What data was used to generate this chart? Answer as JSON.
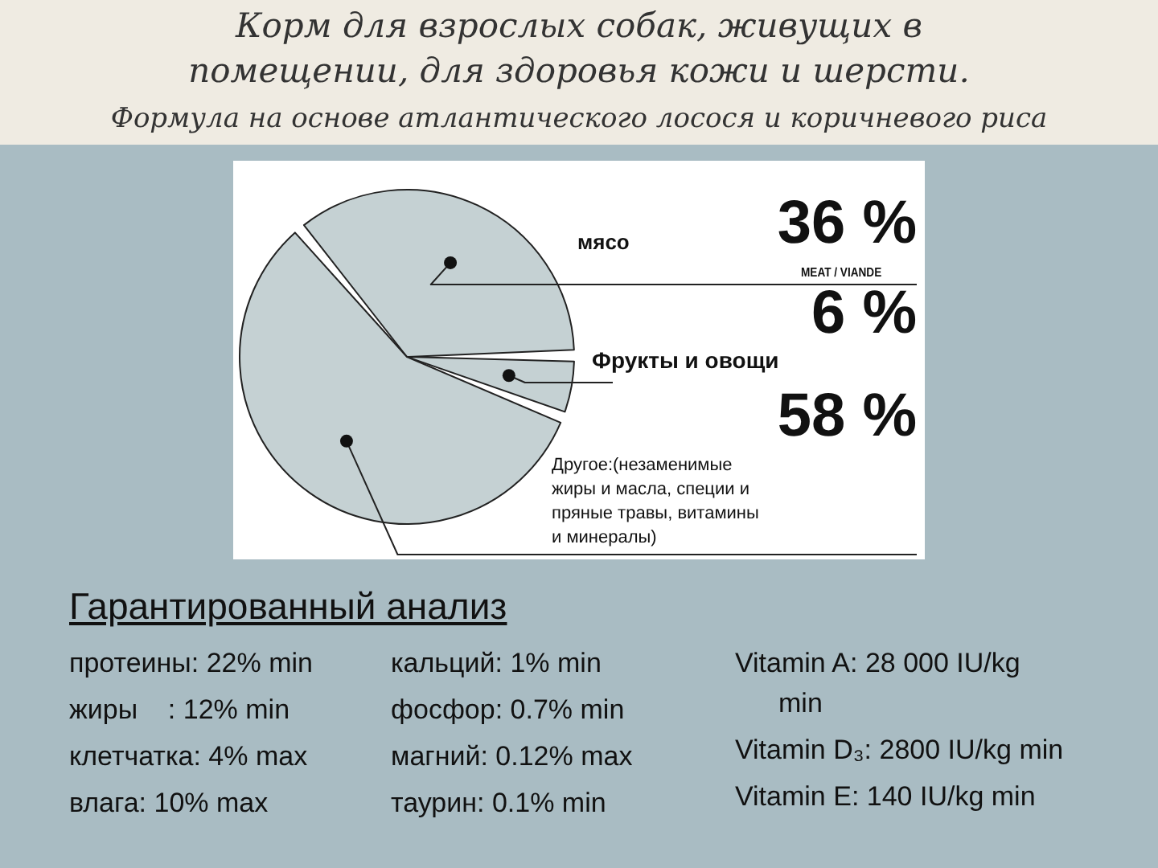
{
  "chart_data": {
    "type": "pie",
    "title": "Корм для взрослых собак, живущих в помещении, для здоровья кожи и шерсти.",
    "subtitle": "Формула на основе атлантического лосося и коричневого риса",
    "categories": [
      "мясо",
      "Фрукты и овощи",
      "Другое:(незаменимые жиры и масла, специи и пряные травы, витамины и минералы)"
    ],
    "values": [
      36,
      6,
      58
    ],
    "colors": [
      "#c5d1d3",
      "#c5d1d3",
      "#c5d1d3"
    ],
    "value_labels": [
      "36 %",
      "6 %",
      "58 %"
    ],
    "annotations": [
      "MEAT / VIANDE",
      "Гарантированный анализ",
      "протеины: 22% min",
      "жиры    : 12% min",
      "клетчатка: 4% max",
      "влага: 10% max",
      "кальций: 1% min",
      "фосфор: 0.7% min",
      "магний: 0.12% max",
      "таурин: 0.1% min",
      "Vitamin A: 28 000 IU/kg min",
      "Vitamin D₃: 2800 IU/kg min",
      "Vitamin E: 140 IU/kg min"
    ]
  }
}
